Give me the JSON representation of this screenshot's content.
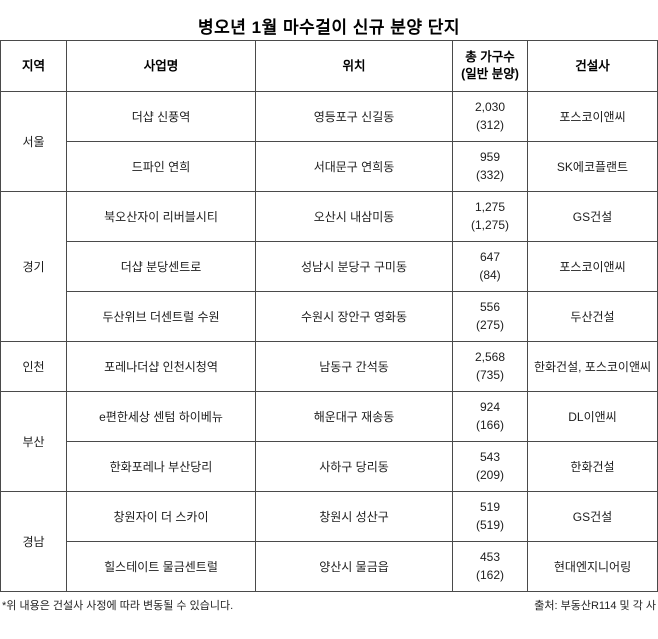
{
  "chart_data": {
    "type": "table",
    "title": "병오년 1월 마수걸이 신규 분양 단지",
    "header": {
      "region": "지역",
      "project": "사업명",
      "location": "위치",
      "households_line1": "총 가구수",
      "households_line2": "(일반 분양)",
      "builder": "건설사"
    },
    "groups": [
      {
        "region": "서울",
        "rows": [
          {
            "project": "더샵 신풍역",
            "location": "영등포구 신길동",
            "total": "2,030",
            "general": "(312)",
            "builder": "포스코이앤씨"
          },
          {
            "project": "드파인 연희",
            "location": "서대문구 연희동",
            "total": "959",
            "general": "(332)",
            "builder": "SK에코플랜트"
          }
        ]
      },
      {
        "region": "경기",
        "rows": [
          {
            "project": "북오산자이 리버블시티",
            "location": "오산시 내삼미동",
            "total": "1,275",
            "general": "(1,275)",
            "builder": "GS건설"
          },
          {
            "project": "더샵 분당센트로",
            "location": "성남시 분당구 구미동",
            "total": "647",
            "general": "(84)",
            "builder": "포스코이앤씨"
          },
          {
            "project": "두산위브 더센트럴 수원",
            "location": "수원시 장안구 영화동",
            "total": "556",
            "general": "(275)",
            "builder": "두산건설"
          }
        ]
      },
      {
        "region": "인천",
        "rows": [
          {
            "project": "포레나더샵 인천시청역",
            "location": "남동구 간석동",
            "total": "2,568",
            "general": "(735)",
            "builder": "한화건설, 포스코이앤씨"
          }
        ]
      },
      {
        "region": "부산",
        "rows": [
          {
            "project": "e편한세상 센텀 하이베뉴",
            "location": "해운대구 재송동",
            "total": "924",
            "general": "(166)",
            "builder": "DL이앤씨"
          },
          {
            "project": "한화포레나 부산당리",
            "location": "사하구 당리동",
            "total": "543",
            "general": "(209)",
            "builder": "한화건설"
          }
        ]
      },
      {
        "region": "경남",
        "rows": [
          {
            "project": "창원자이 더 스카이",
            "location": "창원시 성산구",
            "total": "519",
            "general": "(519)",
            "builder": "GS건설"
          },
          {
            "project": "힐스테이트 물금센트럴",
            "location": "양산시 물금읍",
            "total": "453",
            "general": "(162)",
            "builder": "현대엔지니어링"
          }
        ]
      }
    ]
  },
  "footer": {
    "note": "*위 내용은 건설사 사정에 따라 변동될 수 있습니다.",
    "source": "출처: 부동산R114 및 각 사"
  }
}
